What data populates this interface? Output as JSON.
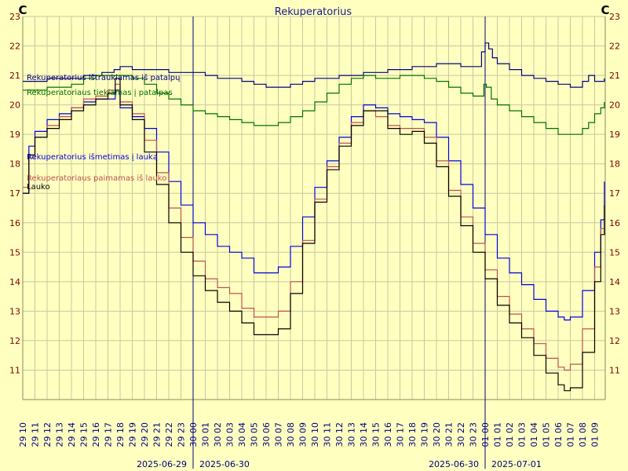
{
  "chart_data": {
    "type": "line",
    "title": "Rekuperatorius",
    "unit_left": "C",
    "unit_right": "C",
    "ylim": [
      10,
      23
    ],
    "y_ticks": [
      11,
      12,
      13,
      14,
      15,
      16,
      17,
      18,
      19,
      20,
      21,
      22,
      23
    ],
    "x_start": "2025-06-29 10:00",
    "x_end": "2025-07-01 09:50",
    "x_tick_labels": [
      "29 10",
      "29 11",
      "29 12",
      "29 13",
      "29 14",
      "29 15",
      "29 16",
      "29 17",
      "29 18",
      "29 19",
      "29 20",
      "29 21",
      "29 22",
      "29 23",
      "30 00",
      "30 01",
      "30 02",
      "30 03",
      "30 04",
      "30 05",
      "30 06",
      "30 07",
      "30 08",
      "30 09",
      "30 10",
      "30 11",
      "30 12",
      "30 13",
      "30 14",
      "30 15",
      "30 16",
      "30 17",
      "30 18",
      "30 19",
      "30 20",
      "30 21",
      "30 22",
      "30 23",
      "01 00",
      "01 01",
      "01 02",
      "01 03",
      "01 04",
      "01 05",
      "01 06",
      "01 07",
      "01 08",
      "01 09"
    ],
    "day_boundaries": [
      {
        "hour_index": 14,
        "left_label": "2025-06-29",
        "right_label": "2025-06-30"
      },
      {
        "hour_index": 38,
        "left_label": "2025-06-30",
        "right_label": "2025-07-01"
      }
    ],
    "grid": true,
    "legend_position": "left",
    "series": [
      {
        "name": "Rekuperatorius ištraukiamas iš patalpų",
        "color": "#000080",
        "points": [
          [
            0,
            20.8
          ],
          [
            2,
            20.9
          ],
          [
            4,
            20.9
          ],
          [
            5,
            21.0
          ],
          [
            6,
            21.0
          ],
          [
            6.5,
            21.1
          ],
          [
            7.5,
            21.2
          ],
          [
            8,
            21.3
          ],
          [
            8.5,
            21.3
          ],
          [
            9,
            21.2
          ],
          [
            10,
            21.2
          ],
          [
            11,
            21.2
          ],
          [
            12,
            21.1
          ],
          [
            14,
            21.1
          ],
          [
            15,
            21.0
          ],
          [
            16,
            20.9
          ],
          [
            18,
            20.8
          ],
          [
            19,
            20.7
          ],
          [
            20,
            20.6
          ],
          [
            21,
            20.6
          ],
          [
            22,
            20.7
          ],
          [
            23,
            20.8
          ],
          [
            24,
            20.9
          ],
          [
            26,
            21.0
          ],
          [
            28,
            21.1
          ],
          [
            30,
            21.2
          ],
          [
            31,
            21.2
          ],
          [
            32,
            21.3
          ],
          [
            33,
            21.3
          ],
          [
            34,
            21.4
          ],
          [
            35,
            21.4
          ],
          [
            36,
            21.3
          ],
          [
            37.5,
            21.3
          ],
          [
            37.7,
            21.8
          ],
          [
            38,
            22.1
          ],
          [
            38.3,
            21.9
          ],
          [
            38.6,
            21.6
          ],
          [
            39,
            21.4
          ],
          [
            40,
            21.2
          ],
          [
            41,
            21.0
          ],
          [
            42,
            20.9
          ],
          [
            43,
            20.8
          ],
          [
            44,
            20.7
          ],
          [
            45,
            20.6
          ],
          [
            46,
            20.8
          ],
          [
            46.5,
            21.0
          ],
          [
            47,
            20.8
          ],
          [
            47.8,
            20.9
          ]
        ]
      },
      {
        "name": "Rekuperatoriaus tiekiamas į patalpas",
        "color": "#007000",
        "points": [
          [
            0,
            20.5
          ],
          [
            2,
            20.6
          ],
          [
            4,
            20.7
          ],
          [
            5,
            20.9
          ],
          [
            6,
            21.0
          ],
          [
            7,
            21.0
          ],
          [
            8,
            21.0
          ],
          [
            9,
            20.9
          ],
          [
            10,
            20.7
          ],
          [
            11,
            20.4
          ],
          [
            12,
            20.2
          ],
          [
            13,
            20.0
          ],
          [
            14,
            19.8
          ],
          [
            15,
            19.7
          ],
          [
            16,
            19.6
          ],
          [
            17,
            19.5
          ],
          [
            18,
            19.4
          ],
          [
            19,
            19.3
          ],
          [
            20,
            19.3
          ],
          [
            21,
            19.4
          ],
          [
            22,
            19.6
          ],
          [
            23,
            19.8
          ],
          [
            24,
            20.1
          ],
          [
            25,
            20.4
          ],
          [
            26,
            20.7
          ],
          [
            27,
            20.9
          ],
          [
            28,
            21.0
          ],
          [
            29,
            20.9
          ],
          [
            30,
            20.9
          ],
          [
            31,
            21.0
          ],
          [
            32,
            21.0
          ],
          [
            33,
            20.9
          ],
          [
            34,
            20.8
          ],
          [
            35,
            20.6
          ],
          [
            36,
            20.4
          ],
          [
            37,
            20.3
          ],
          [
            37.6,
            20.3
          ],
          [
            37.9,
            20.7
          ],
          [
            38.1,
            20.6
          ],
          [
            38.5,
            20.2
          ],
          [
            39,
            20.0
          ],
          [
            40,
            19.8
          ],
          [
            41,
            19.6
          ],
          [
            42,
            19.4
          ],
          [
            43,
            19.2
          ],
          [
            44,
            19.0
          ],
          [
            45,
            19.0
          ],
          [
            46,
            19.2
          ],
          [
            46.5,
            19.4
          ],
          [
            47,
            19.7
          ],
          [
            47.5,
            19.9
          ],
          [
            47.8,
            20.1
          ]
        ]
      },
      {
        "name": "Rekuperatorius išmetimas į lauką",
        "color": "#0000E0",
        "points": [
          [
            0,
            17.0
          ],
          [
            0.5,
            18.6
          ],
          [
            1,
            19.1
          ],
          [
            2,
            19.5
          ],
          [
            3,
            19.7
          ],
          [
            4,
            19.9
          ],
          [
            5,
            20.1
          ],
          [
            6,
            20.2
          ],
          [
            7,
            20.2
          ],
          [
            7.6,
            20.5
          ],
          [
            8,
            19.9
          ],
          [
            9,
            19.6
          ],
          [
            10,
            19.2
          ],
          [
            11,
            18.4
          ],
          [
            12,
            17.4
          ],
          [
            13,
            16.6
          ],
          [
            14,
            16.0
          ],
          [
            15,
            15.6
          ],
          [
            16,
            15.2
          ],
          [
            17,
            15.0
          ],
          [
            18,
            14.8
          ],
          [
            19,
            14.3
          ],
          [
            20,
            14.3
          ],
          [
            21,
            14.5
          ],
          [
            22,
            15.2
          ],
          [
            23,
            16.2
          ],
          [
            24,
            17.2
          ],
          [
            25,
            18.1
          ],
          [
            26,
            18.9
          ],
          [
            27,
            19.6
          ],
          [
            28,
            20.0
          ],
          [
            29,
            19.9
          ],
          [
            30,
            19.7
          ],
          [
            31,
            19.6
          ],
          [
            32,
            19.5
          ],
          [
            33,
            19.4
          ],
          [
            34,
            18.9
          ],
          [
            35,
            18.1
          ],
          [
            36,
            17.3
          ],
          [
            37,
            16.5
          ],
          [
            38,
            15.6
          ],
          [
            39,
            14.8
          ],
          [
            40,
            14.3
          ],
          [
            41,
            13.9
          ],
          [
            42,
            13.4
          ],
          [
            43,
            13.0
          ],
          [
            44,
            12.8
          ],
          [
            44.5,
            12.7
          ],
          [
            45,
            12.8
          ],
          [
            46,
            13.7
          ],
          [
            47,
            15.0
          ],
          [
            47.5,
            16.1
          ],
          [
            47.8,
            17.4
          ]
        ]
      },
      {
        "name": "Rekuperatoriaus paimamas iš lauko",
        "color": "#C05050",
        "points": [
          [
            0,
            17.2
          ],
          [
            0.5,
            18.2
          ],
          [
            1,
            18.9
          ],
          [
            2,
            19.3
          ],
          [
            3,
            19.6
          ],
          [
            4,
            19.9
          ],
          [
            5,
            20.2
          ],
          [
            6,
            20.3
          ],
          [
            7,
            20.5
          ],
          [
            7.6,
            20.7
          ],
          [
            8,
            20.1
          ],
          [
            9,
            19.7
          ],
          [
            10,
            18.8
          ],
          [
            11,
            17.7
          ],
          [
            12,
            16.5
          ],
          [
            13,
            15.5
          ],
          [
            14,
            14.7
          ],
          [
            15,
            14.1
          ],
          [
            16,
            13.8
          ],
          [
            17,
            13.6
          ],
          [
            18,
            13.1
          ],
          [
            19,
            12.8
          ],
          [
            20,
            12.8
          ],
          [
            21,
            13.0
          ],
          [
            22,
            14.0
          ],
          [
            23,
            15.4
          ],
          [
            24,
            16.8
          ],
          [
            25,
            17.9
          ],
          [
            26,
            18.7
          ],
          [
            27,
            19.4
          ],
          [
            28,
            19.8
          ],
          [
            29,
            19.6
          ],
          [
            30,
            19.3
          ],
          [
            31,
            19.2
          ],
          [
            32,
            19.2
          ],
          [
            33,
            18.9
          ],
          [
            34,
            18.1
          ],
          [
            35,
            17.1
          ],
          [
            36,
            16.2
          ],
          [
            37,
            15.3
          ],
          [
            38,
            14.4
          ],
          [
            39,
            13.5
          ],
          [
            40,
            12.9
          ],
          [
            41,
            12.4
          ],
          [
            42,
            11.9
          ],
          [
            43,
            11.4
          ],
          [
            44,
            11.1
          ],
          [
            44.5,
            11.0
          ],
          [
            45,
            11.2
          ],
          [
            46,
            12.4
          ],
          [
            47,
            14.5
          ],
          [
            47.5,
            15.8
          ],
          [
            47.8,
            16.6
          ]
        ]
      },
      {
        "name": "Lauko",
        "color": "#000000",
        "points": [
          [
            0,
            17.0
          ],
          [
            0.5,
            18.3
          ],
          [
            1,
            18.9
          ],
          [
            2,
            19.2
          ],
          [
            3,
            19.5
          ],
          [
            4,
            19.8
          ],
          [
            5,
            20.0
          ],
          [
            6,
            20.2
          ],
          [
            7,
            20.4
          ],
          [
            7.6,
            20.9
          ],
          [
            8,
            20.0
          ],
          [
            9,
            19.5
          ],
          [
            10,
            18.4
          ],
          [
            11,
            17.3
          ],
          [
            12,
            16.0
          ],
          [
            13,
            15.0
          ],
          [
            14,
            14.2
          ],
          [
            15,
            13.7
          ],
          [
            16,
            13.3
          ],
          [
            17,
            13.0
          ],
          [
            18,
            12.6
          ],
          [
            19,
            12.2
          ],
          [
            20,
            12.2
          ],
          [
            21,
            12.4
          ],
          [
            22,
            13.6
          ],
          [
            23,
            15.3
          ],
          [
            24,
            16.7
          ],
          [
            25,
            17.8
          ],
          [
            26,
            18.6
          ],
          [
            27,
            19.3
          ],
          [
            28,
            19.8
          ],
          [
            29,
            19.8
          ],
          [
            30,
            19.2
          ],
          [
            31,
            19.0
          ],
          [
            32,
            19.1
          ],
          [
            33,
            18.7
          ],
          [
            34,
            17.9
          ],
          [
            35,
            16.9
          ],
          [
            36,
            15.9
          ],
          [
            37,
            15.0
          ],
          [
            38,
            14.1
          ],
          [
            39,
            13.2
          ],
          [
            40,
            12.6
          ],
          [
            41,
            12.1
          ],
          [
            42,
            11.5
          ],
          [
            43,
            10.9
          ],
          [
            44,
            10.5
          ],
          [
            44.5,
            10.3
          ],
          [
            45,
            10.4
          ],
          [
            46,
            11.6
          ],
          [
            47,
            14.0
          ],
          [
            47.5,
            15.6
          ],
          [
            47.8,
            16.6
          ]
        ]
      }
    ]
  }
}
